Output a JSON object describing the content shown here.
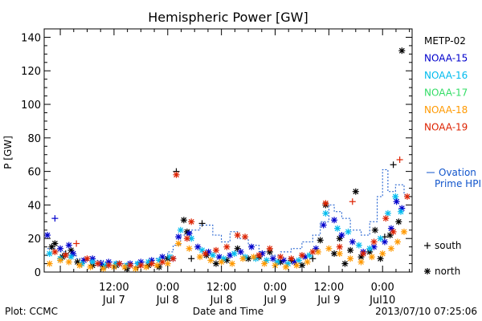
{
  "chart_data": {
    "type": "scatter",
    "title": "Hemispheric Power [GW]",
    "xlabel": "Date and Time",
    "ylabel": "P [GW]",
    "xlim": [
      -0.15,
      3.275
    ],
    "ylim": [
      0,
      145
    ],
    "y_ticks": [
      0,
      20,
      40,
      60,
      80,
      100,
      120,
      140
    ],
    "x_ticks": [
      {
        "x": 0.5,
        "time": "12:00",
        "date": "Jul 7"
      },
      {
        "x": 1.0,
        "time": "0:00",
        "date": "Jul 8"
      },
      {
        "x": 1.5,
        "time": "12:00",
        "date": "Jul 8"
      },
      {
        "x": 2.0,
        "time": "0:00",
        "date": "Jul 9"
      },
      {
        "x": 2.5,
        "time": "12:00",
        "date": "Jul 9"
      },
      {
        "x": 3.0,
        "time": "0:00",
        "date": "Jul10"
      }
    ],
    "x_unit_note": "x values are days since 2013-07-07 00:00 UTC",
    "legend_position": "right",
    "grid": false,
    "series": [
      {
        "name": "METP-02",
        "color": "#000000",
        "points": [
          [
            -0.08,
            15,
            "*"
          ],
          [
            -0.05,
            17,
            "*"
          ],
          [
            0.02,
            9,
            "*"
          ],
          [
            0.05,
            11,
            "+"
          ],
          [
            0.1,
            13,
            "*"
          ],
          [
            0.16,
            6,
            "*"
          ],
          [
            0.2,
            5,
            "+"
          ],
          [
            0.3,
            4,
            "*"
          ],
          [
            0.4,
            3,
            "*"
          ],
          [
            0.52,
            4,
            "*"
          ],
          [
            0.62,
            2,
            "*"
          ],
          [
            0.72,
            3,
            "+"
          ],
          [
            0.82,
            4,
            "*"
          ],
          [
            0.92,
            3,
            "*"
          ],
          [
            1.0,
            8,
            "*"
          ],
          [
            1.08,
            60,
            "+"
          ],
          [
            1.15,
            31,
            "*"
          ],
          [
            1.18,
            24,
            "*"
          ],
          [
            1.22,
            8,
            "+"
          ],
          [
            1.32,
            29,
            "+"
          ],
          [
            1.36,
            10,
            "*"
          ],
          [
            1.45,
            5,
            "*"
          ],
          [
            1.55,
            7,
            "*"
          ],
          [
            1.65,
            14,
            "*"
          ],
          [
            1.75,
            8,
            "*"
          ],
          [
            1.85,
            9,
            "*"
          ],
          [
            1.95,
            12,
            "*"
          ],
          [
            2.05,
            6,
            "*"
          ],
          [
            2.15,
            7,
            "*"
          ],
          [
            2.25,
            4,
            "*"
          ],
          [
            2.35,
            8,
            "+"
          ],
          [
            2.42,
            19,
            "*"
          ],
          [
            2.47,
            40,
            "*"
          ],
          [
            2.55,
            11,
            "*"
          ],
          [
            2.6,
            20,
            "*"
          ],
          [
            2.65,
            5,
            "*"
          ],
          [
            2.7,
            13,
            "*"
          ],
          [
            2.75,
            48,
            "*"
          ],
          [
            2.8,
            9,
            "*"
          ],
          [
            2.88,
            12,
            "*"
          ],
          [
            2.93,
            25,
            "*"
          ],
          [
            2.98,
            8,
            "*"
          ],
          [
            3.02,
            21,
            "+"
          ],
          [
            3.07,
            22,
            "*"
          ],
          [
            3.1,
            64,
            "+"
          ],
          [
            3.15,
            30,
            "*"
          ],
          [
            3.18,
            132,
            "*"
          ]
        ]
      },
      {
        "name": "NOAA-15",
        "color": "#0000cc",
        "points": [
          [
            -0.12,
            22,
            "*"
          ],
          [
            -0.05,
            32,
            "+"
          ],
          [
            0.0,
            14,
            "*"
          ],
          [
            0.08,
            16,
            "*"
          ],
          [
            0.12,
            11,
            "*"
          ],
          [
            0.22,
            7,
            "*"
          ],
          [
            0.3,
            8,
            "*"
          ],
          [
            0.38,
            5,
            "*"
          ],
          [
            0.45,
            6,
            "*"
          ],
          [
            0.55,
            5,
            "*"
          ],
          [
            0.65,
            5,
            "*"
          ],
          [
            0.75,
            6,
            "*"
          ],
          [
            0.85,
            7,
            "*"
          ],
          [
            0.95,
            9,
            "*"
          ],
          [
            1.05,
            8,
            "*"
          ],
          [
            1.1,
            21,
            "*"
          ],
          [
            1.2,
            23,
            "*"
          ],
          [
            1.28,
            15,
            "*"
          ],
          [
            1.38,
            12,
            "*"
          ],
          [
            1.48,
            9,
            "*"
          ],
          [
            1.58,
            10,
            "*"
          ],
          [
            1.68,
            12,
            "*"
          ],
          [
            1.78,
            15,
            "*"
          ],
          [
            1.88,
            11,
            "*"
          ],
          [
            1.98,
            8,
            "*"
          ],
          [
            2.08,
            7,
            "*"
          ],
          [
            2.18,
            6,
            "*"
          ],
          [
            2.28,
            9,
            "*"
          ],
          [
            2.38,
            14,
            "*"
          ],
          [
            2.45,
            28,
            "*"
          ],
          [
            2.55,
            31,
            "*"
          ],
          [
            2.62,
            22,
            "*"
          ],
          [
            2.72,
            18,
            "*"
          ],
          [
            2.82,
            12,
            "*"
          ],
          [
            2.92,
            15,
            "*"
          ],
          [
            3.02,
            18,
            "*"
          ],
          [
            3.08,
            26,
            "*"
          ],
          [
            3.13,
            42,
            "*"
          ],
          [
            3.18,
            38,
            "*"
          ]
        ]
      },
      {
        "name": "NOAA-16",
        "color": "#00bbee",
        "points": [
          [
            -0.1,
            11,
            "*"
          ],
          [
            0.0,
            8,
            "*"
          ],
          [
            0.1,
            9,
            "*"
          ],
          [
            0.2,
            5,
            "*"
          ],
          [
            0.3,
            6,
            "*"
          ],
          [
            0.42,
            4,
            "*"
          ],
          [
            0.52,
            5,
            "*"
          ],
          [
            0.62,
            4,
            "*"
          ],
          [
            0.72,
            5,
            "*"
          ],
          [
            0.82,
            6,
            "*"
          ],
          [
            0.92,
            7,
            "*"
          ],
          [
            1.02,
            9,
            "*"
          ],
          [
            1.12,
            25,
            "*"
          ],
          [
            1.22,
            20,
            "*"
          ],
          [
            1.32,
            13,
            "*"
          ],
          [
            1.42,
            10,
            "*"
          ],
          [
            1.52,
            8,
            "*"
          ],
          [
            1.62,
            11,
            "*"
          ],
          [
            1.72,
            9,
            "*"
          ],
          [
            1.82,
            8,
            "*"
          ],
          [
            1.92,
            7,
            "*"
          ],
          [
            2.02,
            6,
            "*"
          ],
          [
            2.12,
            5,
            "*"
          ],
          [
            2.22,
            7,
            "*"
          ],
          [
            2.32,
            10,
            "*"
          ],
          [
            2.47,
            35,
            "*"
          ],
          [
            2.58,
            26,
            "*"
          ],
          [
            2.68,
            24,
            "*"
          ],
          [
            2.78,
            16,
            "*"
          ],
          [
            2.88,
            14,
            "*"
          ],
          [
            2.98,
            20,
            "*"
          ],
          [
            3.05,
            35,
            "*"
          ],
          [
            3.12,
            45,
            "*"
          ],
          [
            3.17,
            36,
            "*"
          ]
        ]
      },
      {
        "name": "NOAA-17",
        "color": "#33dd66",
        "points": []
      },
      {
        "name": "NOAA-18",
        "color": "#ff9900",
        "points": [
          [
            -0.1,
            5,
            "*"
          ],
          [
            0.0,
            7,
            "*"
          ],
          [
            0.08,
            6,
            "*"
          ],
          [
            0.18,
            4,
            "*"
          ],
          [
            0.28,
            3,
            "*"
          ],
          [
            0.4,
            2,
            "*"
          ],
          [
            0.5,
            3,
            "*"
          ],
          [
            0.6,
            3,
            "*"
          ],
          [
            0.7,
            2,
            "*"
          ],
          [
            0.8,
            3,
            "*"
          ],
          [
            0.9,
            4,
            "*"
          ],
          [
            1.0,
            5,
            "*"
          ],
          [
            1.1,
            17,
            "*"
          ],
          [
            1.2,
            14,
            "*"
          ],
          [
            1.3,
            9,
            "*"
          ],
          [
            1.4,
            7,
            "*"
          ],
          [
            1.5,
            6,
            "*"
          ],
          [
            1.6,
            5,
            "*"
          ],
          [
            1.7,
            8,
            "*"
          ],
          [
            1.8,
            9,
            "*"
          ],
          [
            1.9,
            5,
            "*"
          ],
          [
            2.0,
            4,
            "*"
          ],
          [
            2.1,
            3,
            "*"
          ],
          [
            2.2,
            4,
            "*"
          ],
          [
            2.3,
            6,
            "*"
          ],
          [
            2.4,
            12,
            "*"
          ],
          [
            2.5,
            14,
            "*"
          ],
          [
            2.6,
            11,
            "*"
          ],
          [
            2.7,
            8,
            "*"
          ],
          [
            2.8,
            6,
            "*"
          ],
          [
            2.9,
            9,
            "*"
          ],
          [
            3.0,
            11,
            "*"
          ],
          [
            3.08,
            14,
            "*"
          ],
          [
            3.14,
            18,
            "*"
          ],
          [
            3.2,
            24,
            "*"
          ]
        ]
      },
      {
        "name": "NOAA-19",
        "color": "#dd2200",
        "points": [
          [
            -0.05,
            12,
            "*"
          ],
          [
            0.05,
            10,
            "*"
          ],
          [
            0.15,
            17,
            "+"
          ],
          [
            0.25,
            8,
            "*"
          ],
          [
            0.35,
            5,
            "*"
          ],
          [
            0.45,
            4,
            "*"
          ],
          [
            0.55,
            5,
            "*"
          ],
          [
            0.65,
            4,
            "*"
          ],
          [
            0.75,
            4,
            "*"
          ],
          [
            0.85,
            5,
            "*"
          ],
          [
            0.95,
            6,
            "*"
          ],
          [
            1.05,
            8,
            "*"
          ],
          [
            1.08,
            58,
            "*"
          ],
          [
            1.18,
            20,
            "*"
          ],
          [
            1.22,
            30,
            "*"
          ],
          [
            1.35,
            11,
            "*"
          ],
          [
            1.45,
            13,
            "*"
          ],
          [
            1.55,
            15,
            "*"
          ],
          [
            1.65,
            22,
            "*"
          ],
          [
            1.72,
            21,
            "*"
          ],
          [
            1.85,
            10,
            "*"
          ],
          [
            1.95,
            14,
            "*"
          ],
          [
            2.05,
            9,
            "*"
          ],
          [
            2.15,
            8,
            "*"
          ],
          [
            2.25,
            10,
            "*"
          ],
          [
            2.35,
            12,
            "*"
          ],
          [
            2.47,
            41,
            "*"
          ],
          [
            2.6,
            15,
            "*"
          ],
          [
            2.72,
            42,
            "+"
          ],
          [
            2.82,
            11,
            "*"
          ],
          [
            2.92,
            18,
            "*"
          ],
          [
            3.03,
            32,
            "*"
          ],
          [
            3.1,
            24,
            "*"
          ],
          [
            3.16,
            67,
            "+"
          ],
          [
            3.23,
            45,
            "*"
          ]
        ]
      }
    ],
    "ovation": {
      "name_line1": "Ovation",
      "name_line2": "Prime HPI",
      "color": "#1155cc",
      "points": [
        [
          -0.12,
          14
        ],
        [
          -0.05,
          14
        ],
        [
          -0.05,
          12
        ],
        [
          0.05,
          12
        ],
        [
          0.05,
          10
        ],
        [
          0.15,
          10
        ],
        [
          0.15,
          8
        ],
        [
          0.25,
          8
        ],
        [
          0.25,
          7
        ],
        [
          0.4,
          7
        ],
        [
          0.4,
          6
        ],
        [
          0.55,
          6
        ],
        [
          0.55,
          5
        ],
        [
          0.7,
          5
        ],
        [
          0.7,
          6
        ],
        [
          0.85,
          6
        ],
        [
          0.85,
          8
        ],
        [
          1.0,
          8
        ],
        [
          1.0,
          12
        ],
        [
          1.05,
          12
        ],
        [
          1.05,
          16
        ],
        [
          1.12,
          16
        ],
        [
          1.12,
          22
        ],
        [
          1.22,
          22
        ],
        [
          1.22,
          25
        ],
        [
          1.3,
          25
        ],
        [
          1.3,
          28
        ],
        [
          1.42,
          28
        ],
        [
          1.42,
          22
        ],
        [
          1.5,
          22
        ],
        [
          1.5,
          18
        ],
        [
          1.58,
          18
        ],
        [
          1.58,
          24
        ],
        [
          1.65,
          24
        ],
        [
          1.65,
          20
        ],
        [
          1.75,
          20
        ],
        [
          1.75,
          16
        ],
        [
          1.85,
          16
        ],
        [
          1.85,
          12
        ],
        [
          1.95,
          12
        ],
        [
          1.95,
          10
        ],
        [
          2.05,
          10
        ],
        [
          2.05,
          12
        ],
        [
          2.15,
          12
        ],
        [
          2.15,
          14
        ],
        [
          2.25,
          14
        ],
        [
          2.25,
          18
        ],
        [
          2.35,
          18
        ],
        [
          2.35,
          22
        ],
        [
          2.42,
          22
        ],
        [
          2.42,
          30
        ],
        [
          2.5,
          30
        ],
        [
          2.5,
          40
        ],
        [
          2.55,
          40
        ],
        [
          2.55,
          36
        ],
        [
          2.62,
          36
        ],
        [
          2.62,
          32
        ],
        [
          2.7,
          32
        ],
        [
          2.7,
          25
        ],
        [
          2.8,
          25
        ],
        [
          2.8,
          22
        ],
        [
          2.88,
          22
        ],
        [
          2.88,
          30
        ],
        [
          2.95,
          30
        ],
        [
          2.95,
          45
        ],
        [
          3.0,
          45
        ],
        [
          3.0,
          61
        ],
        [
          3.05,
          61
        ],
        [
          3.05,
          48
        ],
        [
          3.12,
          48
        ],
        [
          3.12,
          52
        ],
        [
          3.2,
          52
        ],
        [
          3.2,
          46
        ],
        [
          3.23,
          46
        ]
      ]
    },
    "symbol_legend": [
      {
        "symbol": "+",
        "label": "south"
      },
      {
        "symbol": "*",
        "label": "north"
      }
    ]
  },
  "footer": {
    "left": "Plot: CCMC",
    "right": "2013/07/10 07:25:06"
  }
}
